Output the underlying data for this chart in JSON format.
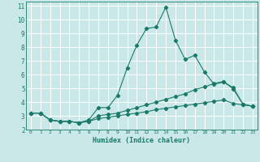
{
  "xlabel": "Humidex (Indice chaleur)",
  "ylabel": "",
  "background_color": "#cbe8e8",
  "grid_color": "#ffffff",
  "line_color": "#1a7a6a",
  "xlim": [
    -0.5,
    23.5
  ],
  "ylim": [
    2,
    11.3
  ],
  "xticks": [
    0,
    1,
    2,
    3,
    4,
    5,
    6,
    7,
    8,
    9,
    10,
    11,
    12,
    13,
    14,
    15,
    16,
    17,
    18,
    19,
    20,
    21,
    22,
    23
  ],
  "yticks": [
    2,
    3,
    4,
    5,
    6,
    7,
    8,
    9,
    10,
    11
  ],
  "line1_x": [
    0,
    1,
    2,
    3,
    4,
    5,
    6,
    7,
    8,
    9,
    10,
    11,
    12,
    13,
    14,
    15,
    16,
    17,
    18,
    19,
    20,
    21,
    22,
    23
  ],
  "line1_y": [
    3.2,
    3.2,
    2.7,
    2.6,
    2.6,
    2.5,
    2.7,
    3.6,
    3.6,
    4.5,
    6.5,
    8.15,
    9.35,
    9.45,
    10.9,
    8.5,
    7.1,
    7.4,
    6.2,
    5.3,
    5.45,
    5.05,
    3.85,
    3.7
  ],
  "line2_x": [
    0,
    1,
    2,
    3,
    4,
    5,
    6,
    7,
    8,
    9,
    10,
    11,
    12,
    13,
    14,
    15,
    16,
    17,
    18,
    19,
    20,
    21,
    22,
    23
  ],
  "line2_y": [
    3.2,
    3.2,
    2.7,
    2.6,
    2.6,
    2.5,
    2.6,
    3.0,
    3.1,
    3.2,
    3.4,
    3.6,
    3.8,
    4.0,
    4.2,
    4.4,
    4.6,
    4.9,
    5.1,
    5.35,
    5.5,
    4.95,
    3.85,
    3.7
  ],
  "line3_x": [
    0,
    1,
    2,
    3,
    4,
    5,
    6,
    7,
    8,
    9,
    10,
    11,
    12,
    13,
    14,
    15,
    16,
    17,
    18,
    19,
    20,
    21,
    22,
    23
  ],
  "line3_y": [
    3.2,
    3.2,
    2.7,
    2.6,
    2.6,
    2.5,
    2.6,
    2.8,
    2.9,
    3.0,
    3.1,
    3.2,
    3.3,
    3.45,
    3.55,
    3.65,
    3.75,
    3.85,
    3.95,
    4.05,
    4.15,
    3.9,
    3.8,
    3.7
  ]
}
